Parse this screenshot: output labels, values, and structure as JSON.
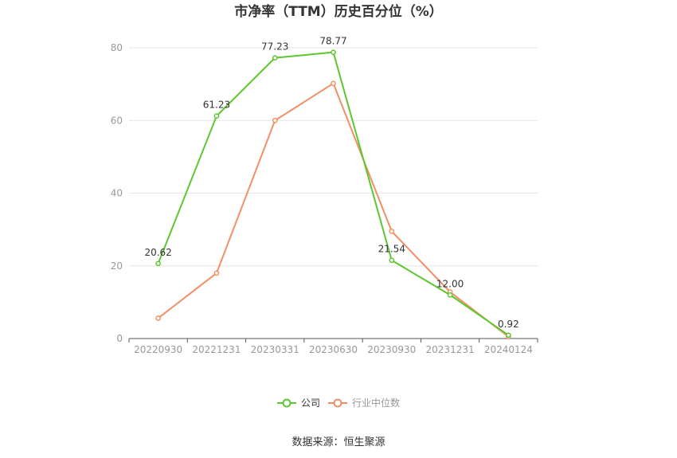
{
  "chart_data": {
    "type": "line",
    "title": "市净率（TTM）历史百分位（%）",
    "categories": [
      "20220930",
      "20221231",
      "20230331",
      "20230630",
      "20230930",
      "20231231",
      "20240124"
    ],
    "ylim": [
      0,
      80
    ],
    "yticks": [
      "0",
      "20",
      "40",
      "60",
      "80"
    ],
    "grid": true,
    "legend_position": "bottom-center",
    "series": [
      {
        "name": "公司",
        "color": "#5cc72e",
        "values": [
          20.62,
          61.23,
          77.23,
          78.77,
          21.54,
          12.0,
          0.92
        ],
        "labels": [
          "20.62",
          "61.23",
          "77.23",
          "78.77",
          "21.54",
          "12.00",
          "0.92"
        ]
      },
      {
        "name": "行业中位数",
        "color": "#f28f66",
        "values": [
          5.6,
          18.0,
          60.0,
          70.2,
          29.5,
          12.8,
          0.5
        ]
      }
    ],
    "source": "数据来源：恒生聚源"
  }
}
